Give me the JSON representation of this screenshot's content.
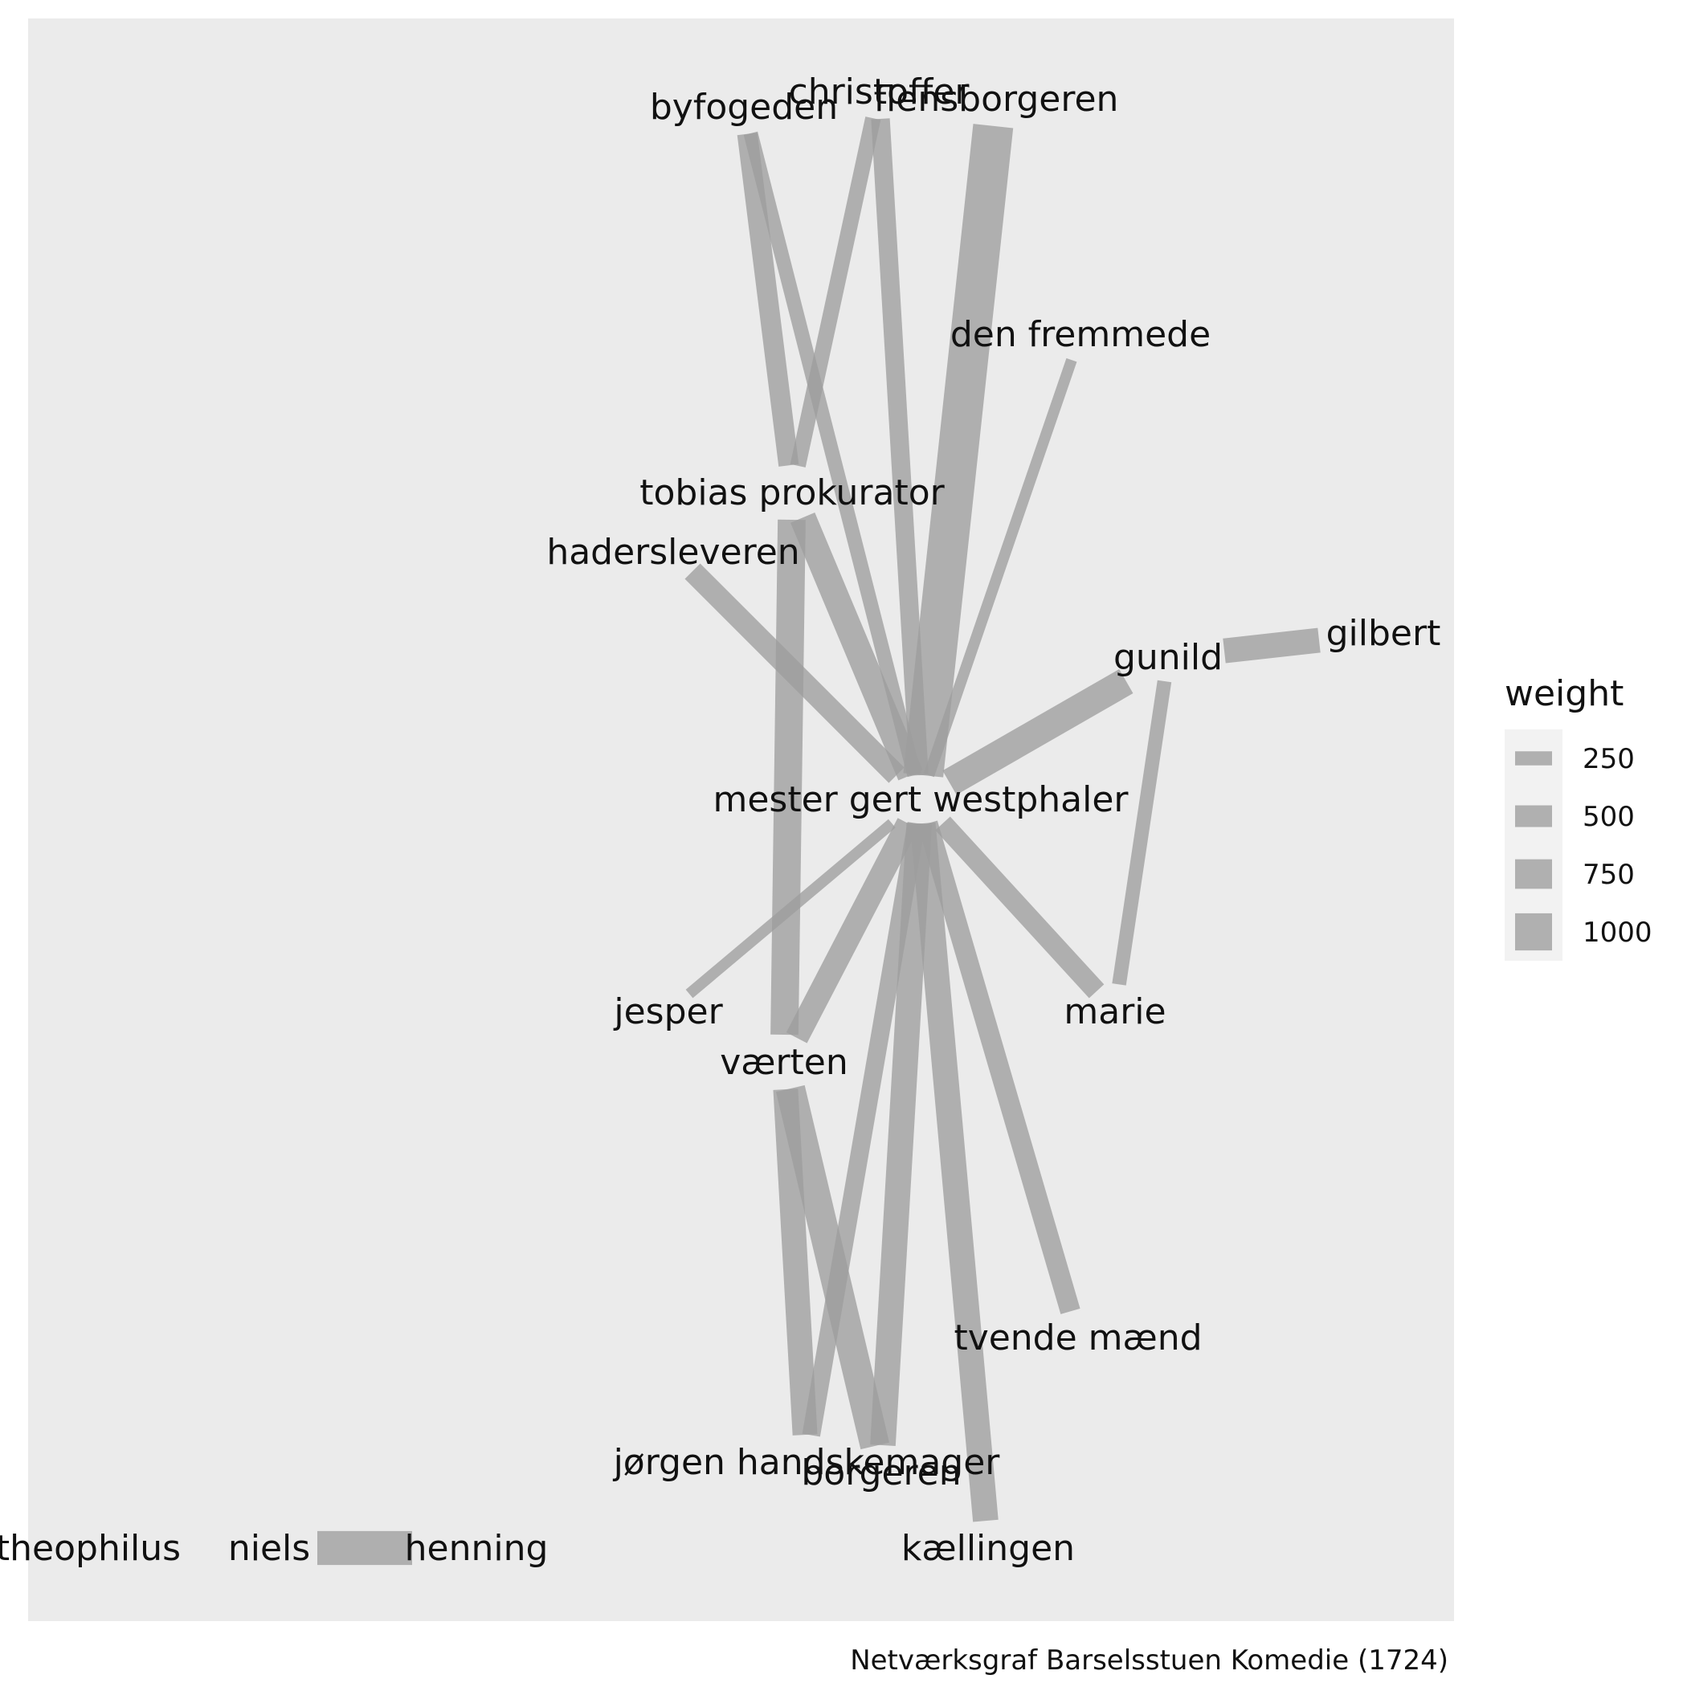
{
  "legend": {
    "title": "weight",
    "breaks": [
      250,
      500,
      750,
      1000
    ]
  },
  "caption": "Netværksgraf Barselsstuen Komedie (1724)",
  "nodes": [
    {
      "id": "mester gert westphaler",
      "label": "mester gert westphaler"
    },
    {
      "id": "byfogeden",
      "label": "byfogeden"
    },
    {
      "id": "christoffer",
      "label": "christoffer"
    },
    {
      "id": "flensborgeren",
      "label": "flensborgeren"
    },
    {
      "id": "den fremmede",
      "label": "den fremmede"
    },
    {
      "id": "tobias prokurator",
      "label": "tobias prokurator"
    },
    {
      "id": "hadersleveren",
      "label": "hadersleveren"
    },
    {
      "id": "gunild",
      "label": "gunild"
    },
    {
      "id": "gilbert",
      "label": "gilbert"
    },
    {
      "id": "jesper",
      "label": "jesper"
    },
    {
      "id": "marie",
      "label": "marie"
    },
    {
      "id": "værten",
      "label": "værten"
    },
    {
      "id": "tvende mænd",
      "label": "tvende mænd"
    },
    {
      "id": "jørgen handskemager",
      "label": "jørgen handskemager"
    },
    {
      "id": "borgeren",
      "label": "borgeren"
    },
    {
      "id": "kællingen",
      "label": "kællingen"
    },
    {
      "id": "theophilus",
      "label": "theophilus"
    },
    {
      "id": "niels",
      "label": "niels"
    },
    {
      "id": "henning",
      "label": "henning"
    }
  ],
  "edges": [
    {
      "from": "mester gert westphaler",
      "to": "flensborgeren",
      "weight": 1100
    },
    {
      "from": "mester gert westphaler",
      "to": "byfogeden",
      "weight": 260
    },
    {
      "from": "mester gert westphaler",
      "to": "christoffer",
      "weight": 400
    },
    {
      "from": "mester gert westphaler",
      "to": "den fremmede",
      "weight": 150
    },
    {
      "from": "mester gert westphaler",
      "to": "tobias prokurator",
      "weight": 650
    },
    {
      "from": "mester gert westphaler",
      "to": "hadersleveren",
      "weight": 500
    },
    {
      "from": "mester gert westphaler",
      "to": "gunild",
      "weight": 700
    },
    {
      "from": "mester gert westphaler",
      "to": "jesper",
      "weight": 150
    },
    {
      "from": "mester gert westphaler",
      "to": "marie",
      "weight": 450
    },
    {
      "from": "mester gert westphaler",
      "to": "værten",
      "weight": 550
    },
    {
      "from": "mester gert westphaler",
      "to": "tvende mænd",
      "weight": 450
    },
    {
      "from": "mester gert westphaler",
      "to": "jørgen handskemager",
      "weight": 380
    },
    {
      "from": "mester gert westphaler",
      "to": "borgeren",
      "weight": 620
    },
    {
      "from": "mester gert westphaler",
      "to": "kællingen",
      "weight": 620
    },
    {
      "from": "byfogeden",
      "to": "tobias prokurator",
      "weight": 450
    },
    {
      "from": "christoffer",
      "to": "tobias prokurator",
      "weight": 300
    },
    {
      "from": "tobias prokurator",
      "to": "værten",
      "weight": 700
    },
    {
      "from": "gunild",
      "to": "gilbert",
      "weight": 600
    },
    {
      "from": "gunild",
      "to": "marie",
      "weight": 250
    },
    {
      "from": "værten",
      "to": "jørgen handskemager",
      "weight": 600
    },
    {
      "from": "værten",
      "to": "borgeren",
      "weight": 750
    },
    {
      "from": "niels",
      "to": "henning",
      "weight": 900
    }
  ]
}
